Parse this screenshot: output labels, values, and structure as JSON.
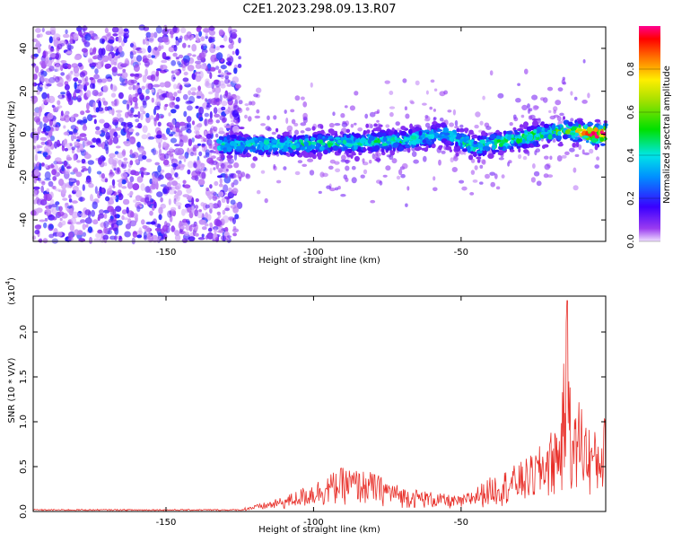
{
  "title": "C2E1.2023.298.09.13.R07",
  "chart_data": [
    {
      "type": "heatmap",
      "xlabel": "Height of straight line (km)",
      "ylabel": "Frequency (Hz)",
      "xlim": [
        -195,
        -1
      ],
      "ylim": [
        -50,
        50
      ],
      "x_ticks": [
        -150,
        -100,
        -50
      ],
      "y_ticks": [
        -40,
        -20,
        0,
        20,
        40
      ],
      "colorbar": {
        "label": "Normalized spectral amplitude",
        "range": [
          0.0,
          1.0
        ],
        "ticks": [
          0.0,
          0.2,
          0.4,
          0.6,
          0.8
        ],
        "colormap": "rainbow"
      },
      "band": {
        "description_points_x": [
          -130,
          -110,
          -90,
          -70,
          -55,
          -45,
          -30,
          -15,
          -5,
          -1
        ],
        "center_freq": [
          -5,
          -5,
          -4,
          -3,
          0,
          -6,
          -2,
          2,
          0,
          0
        ],
        "peak_amplitude": [
          0.4,
          0.45,
          0.45,
          0.45,
          0.4,
          0.45,
          0.5,
          0.55,
          0.95,
          1.0
        ]
      },
      "grid": false
    },
    {
      "type": "line",
      "xlabel": "Height of straight line (km)",
      "ylabel": "SNR (10 * V/V)",
      "y_multiplier_label": "(x10",
      "y_multiplier_exp": "4",
      "xlim": [
        -195,
        -1
      ],
      "ylim": [
        0,
        2.4
      ],
      "x_ticks": [
        -150,
        -100,
        -50
      ],
      "y_ticks": [
        0.0,
        0.5,
        1.0,
        1.5,
        2.0
      ],
      "y_tick_labels": [
        "0.0",
        "0.5",
        "1.0",
        "1.5",
        "2.0"
      ],
      "envelope_x": [
        -195,
        -125,
        -118,
        -110,
        -100,
        -90,
        -80,
        -70,
        -60,
        -50,
        -40,
        -30,
        -25,
        -20,
        -16,
        -14,
        -12,
        -10,
        -7,
        -4,
        -1
      ],
      "envelope_y": [
        0.02,
        0.03,
        0.08,
        0.15,
        0.3,
        0.45,
        0.4,
        0.25,
        0.2,
        0.15,
        0.35,
        0.5,
        0.6,
        0.8,
        1.0,
        2.3,
        0.9,
        1.2,
        0.9,
        0.8,
        1.0
      ],
      "series": [
        {
          "color": "#e8302a"
        }
      ],
      "grid": false
    }
  ]
}
